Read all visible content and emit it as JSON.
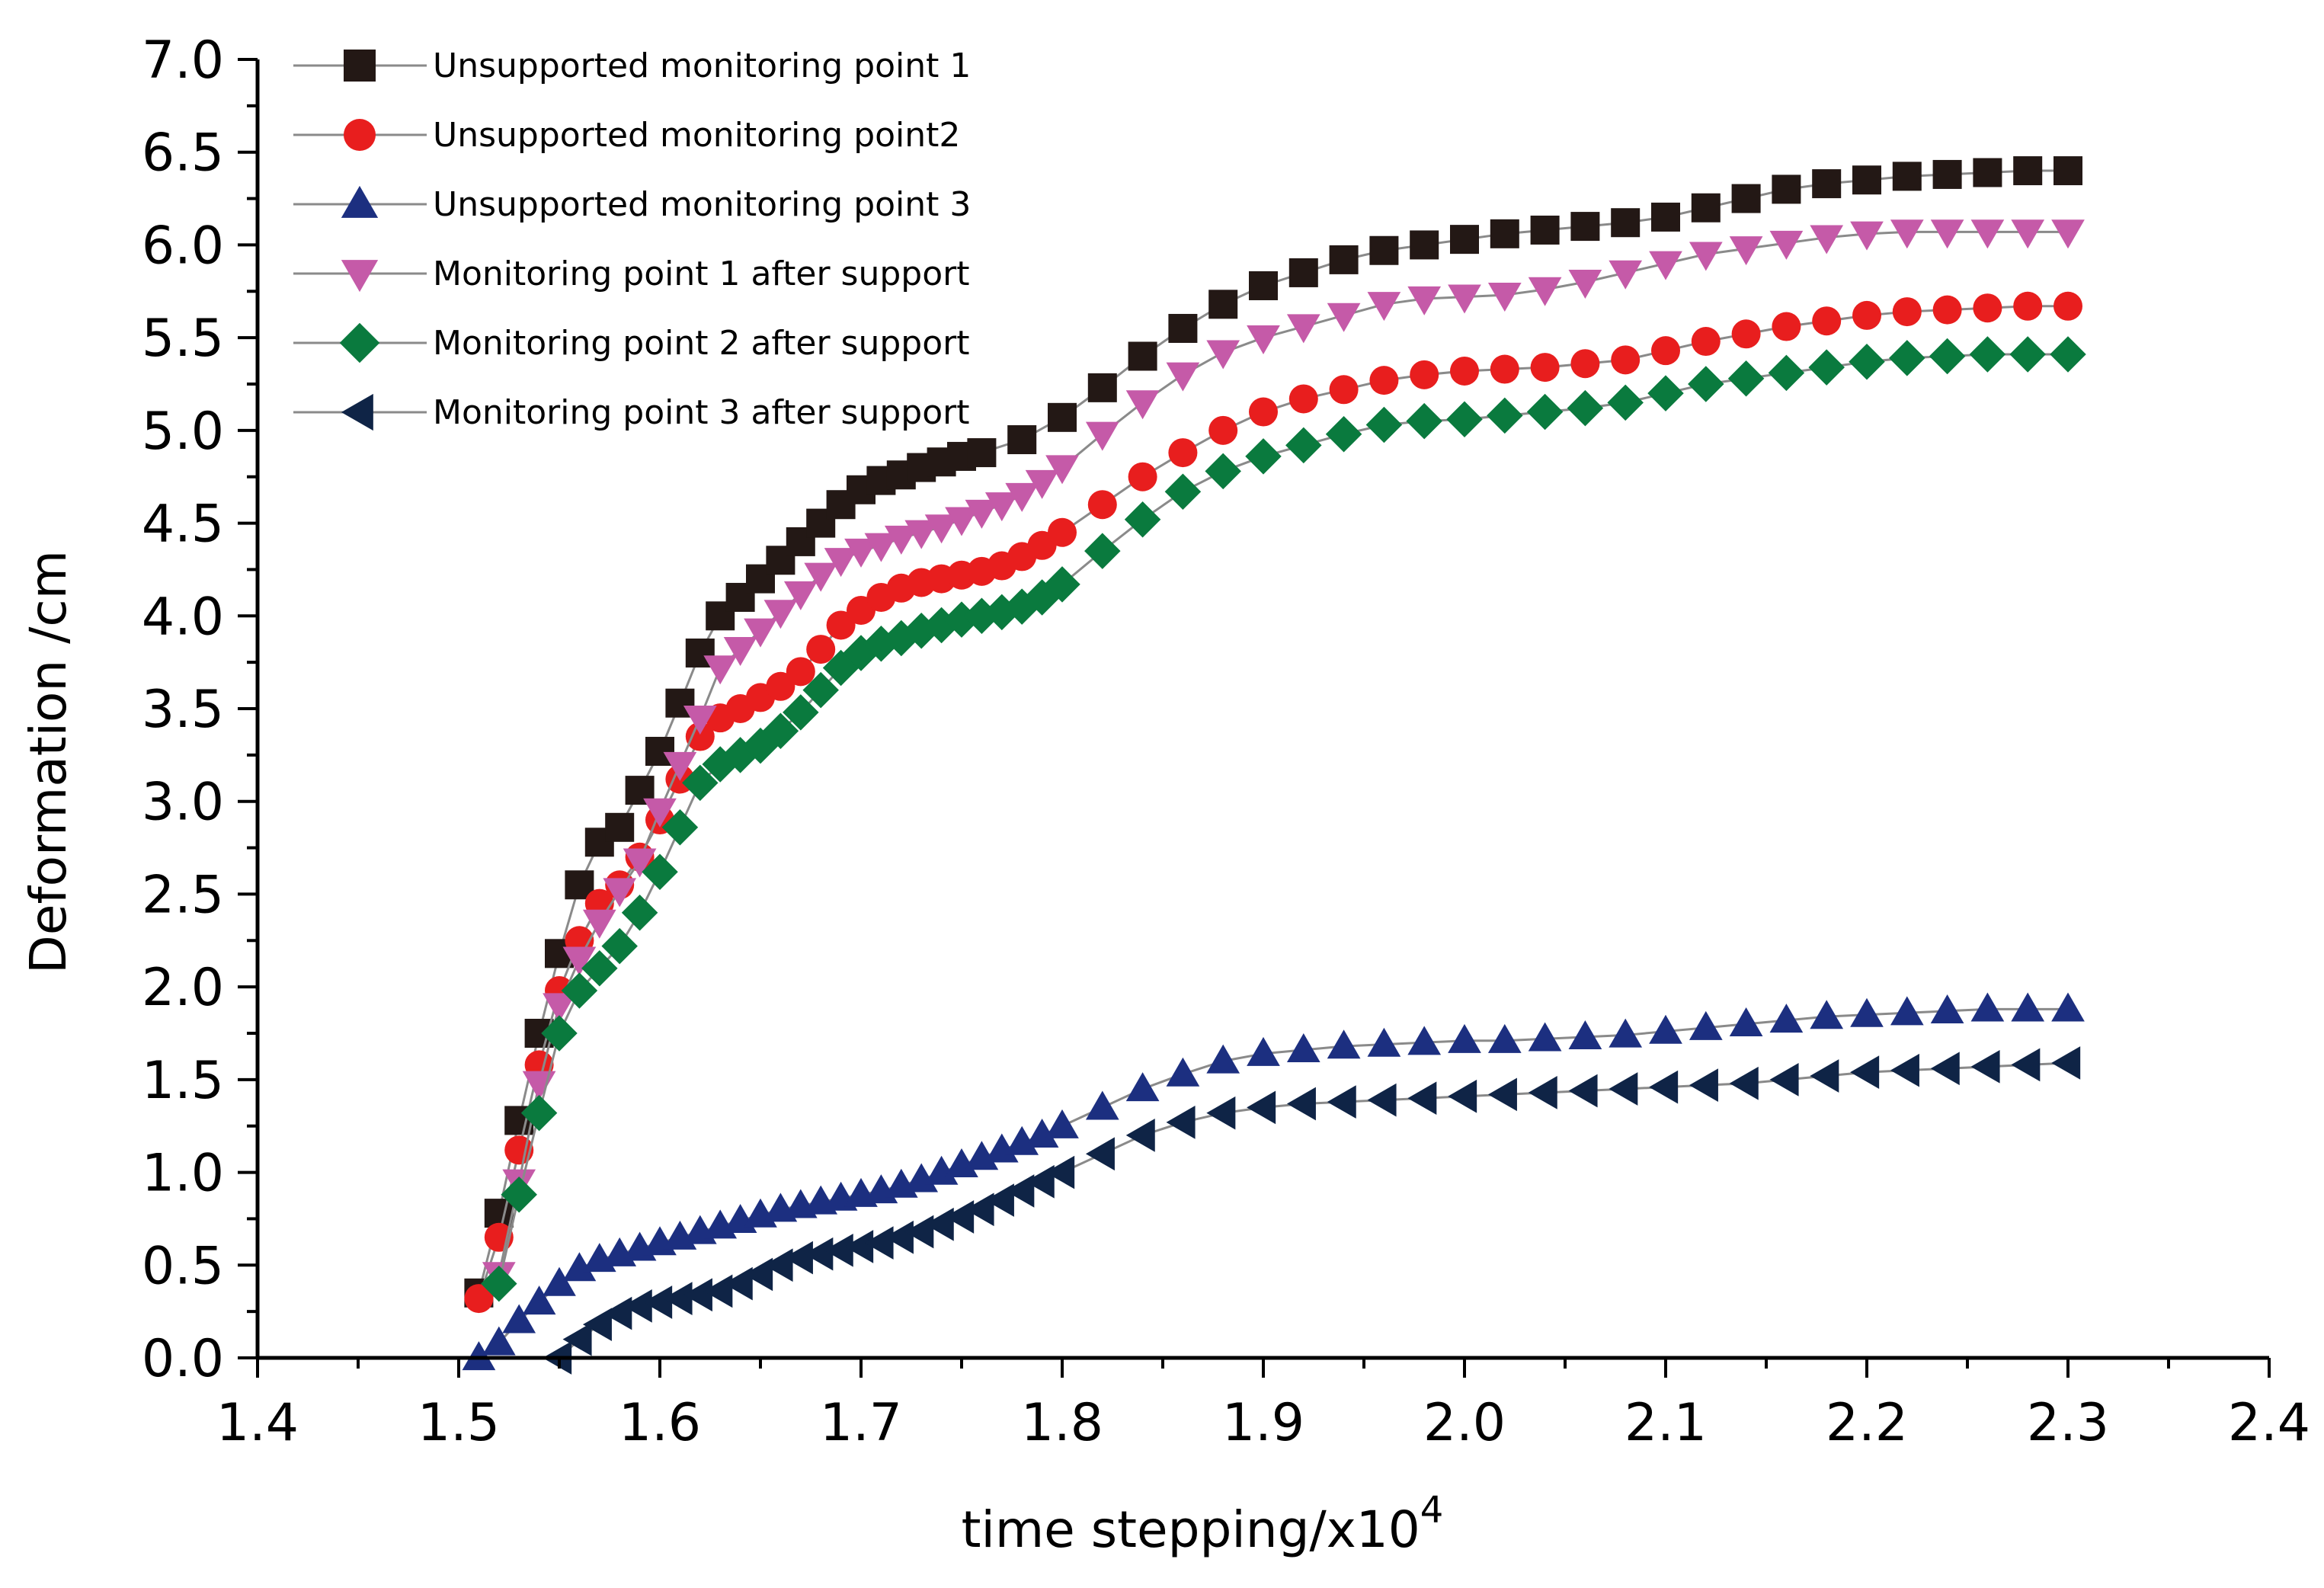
{
  "chart_data": {
    "type": "scatter",
    "title": "",
    "xlabel": "time stepping/x10",
    "xlabel_exponent": "4",
    "ylabel": "Deformation /cm",
    "xlim": [
      1.4,
      2.4
    ],
    "ylim": [
      0.0,
      7.0
    ],
    "x_ticks": [
      "1.4",
      "1.5",
      "1.6",
      "1.7",
      "1.8",
      "1.9",
      "2.0",
      "2.1",
      "2.2",
      "2.3",
      "2.4"
    ],
    "y_ticks": [
      "0.0",
      "0.5",
      "1.0",
      "1.5",
      "2.0",
      "2.5",
      "3.0",
      "3.5",
      "4.0",
      "4.5",
      "5.0",
      "5.5",
      "6.0",
      "6.5",
      "7.0"
    ],
    "grid": false,
    "legend_position": "top-left",
    "series": [
      {
        "name": "Unsupported monitoring point 1",
        "marker": "square",
        "color": "#231815",
        "x": [
          1.51,
          1.52,
          1.53,
          1.54,
          1.55,
          1.56,
          1.57,
          1.58,
          1.59,
          1.6,
          1.61,
          1.62,
          1.63,
          1.64,
          1.65,
          1.66,
          1.67,
          1.68,
          1.69,
          1.7,
          1.71,
          1.72,
          1.73,
          1.74,
          1.75,
          1.76,
          1.78,
          1.8,
          1.82,
          1.84,
          1.86,
          1.88,
          1.9,
          1.92,
          1.94,
          1.96,
          1.98,
          2.0,
          2.02,
          2.04,
          2.06,
          2.08,
          2.1,
          2.12,
          2.14,
          2.16,
          2.18,
          2.2,
          2.22,
          2.24,
          2.26,
          2.28,
          2.3
        ],
        "y": [
          0.35,
          0.78,
          1.28,
          1.75,
          2.18,
          2.55,
          2.78,
          2.86,
          3.06,
          3.27,
          3.53,
          3.8,
          4.0,
          4.1,
          4.2,
          4.3,
          4.4,
          4.5,
          4.6,
          4.68,
          4.73,
          4.76,
          4.8,
          4.83,
          4.86,
          4.88,
          4.95,
          5.07,
          5.23,
          5.4,
          5.55,
          5.68,
          5.78,
          5.85,
          5.92,
          5.97,
          6.0,
          6.03,
          6.06,
          6.08,
          6.1,
          6.12,
          6.15,
          6.2,
          6.25,
          6.3,
          6.33,
          6.35,
          6.37,
          6.38,
          6.39,
          6.4,
          6.4
        ]
      },
      {
        "name": "Unsupported monitoring point2",
        "marker": "circle",
        "color": "#e81e1e",
        "x": [
          1.51,
          1.52,
          1.53,
          1.54,
          1.55,
          1.56,
          1.57,
          1.58,
          1.59,
          1.6,
          1.61,
          1.62,
          1.63,
          1.64,
          1.65,
          1.66,
          1.67,
          1.68,
          1.69,
          1.7,
          1.71,
          1.72,
          1.73,
          1.74,
          1.75,
          1.76,
          1.77,
          1.78,
          1.79,
          1.8,
          1.82,
          1.84,
          1.86,
          1.88,
          1.9,
          1.92,
          1.94,
          1.96,
          1.98,
          2.0,
          2.02,
          2.04,
          2.06,
          2.08,
          2.1,
          2.12,
          2.14,
          2.16,
          2.18,
          2.2,
          2.22,
          2.24,
          2.26,
          2.28,
          2.3
        ],
        "y": [
          0.32,
          0.65,
          1.12,
          1.58,
          1.98,
          2.25,
          2.45,
          2.55,
          2.7,
          2.9,
          3.12,
          3.35,
          3.45,
          3.5,
          3.56,
          3.62,
          3.7,
          3.82,
          3.95,
          4.03,
          4.1,
          4.15,
          4.18,
          4.2,
          4.22,
          4.24,
          4.27,
          4.32,
          4.38,
          4.45,
          4.6,
          4.75,
          4.88,
          5.0,
          5.1,
          5.17,
          5.22,
          5.27,
          5.3,
          5.32,
          5.33,
          5.34,
          5.36,
          5.38,
          5.43,
          5.48,
          5.52,
          5.56,
          5.59,
          5.62,
          5.64,
          5.65,
          5.66,
          5.67,
          5.67
        ]
      },
      {
        "name": "Unsupported monitoring point 3",
        "marker": "triangle-up",
        "color": "#1c2f80",
        "x": [
          1.51,
          1.52,
          1.53,
          1.54,
          1.55,
          1.56,
          1.57,
          1.58,
          1.59,
          1.6,
          1.61,
          1.62,
          1.63,
          1.64,
          1.65,
          1.66,
          1.67,
          1.68,
          1.69,
          1.7,
          1.71,
          1.72,
          1.73,
          1.74,
          1.75,
          1.76,
          1.77,
          1.78,
          1.79,
          1.8,
          1.82,
          1.84,
          1.86,
          1.88,
          1.9,
          1.92,
          1.94,
          1.96,
          1.98,
          2.0,
          2.02,
          2.04,
          2.06,
          2.08,
          2.1,
          2.12,
          2.14,
          2.16,
          2.18,
          2.2,
          2.22,
          2.24,
          2.26,
          2.28,
          2.3
        ],
        "y": [
          0.0,
          0.08,
          0.2,
          0.3,
          0.4,
          0.48,
          0.53,
          0.56,
          0.59,
          0.62,
          0.65,
          0.68,
          0.71,
          0.74,
          0.77,
          0.8,
          0.82,
          0.84,
          0.86,
          0.88,
          0.9,
          0.93,
          0.96,
          1.0,
          1.04,
          1.08,
          1.12,
          1.16,
          1.2,
          1.25,
          1.35,
          1.45,
          1.53,
          1.6,
          1.64,
          1.66,
          1.68,
          1.69,
          1.7,
          1.71,
          1.71,
          1.72,
          1.73,
          1.74,
          1.76,
          1.78,
          1.8,
          1.82,
          1.84,
          1.85,
          1.86,
          1.87,
          1.88,
          1.88,
          1.88
        ]
      },
      {
        "name": "Monitoring point 1 after support",
        "marker": "triangle-down",
        "color": "#c55aa8",
        "x": [
          1.52,
          1.53,
          1.54,
          1.55,
          1.56,
          1.57,
          1.58,
          1.59,
          1.6,
          1.61,
          1.62,
          1.63,
          1.64,
          1.65,
          1.66,
          1.67,
          1.68,
          1.69,
          1.7,
          1.71,
          1.72,
          1.73,
          1.74,
          1.75,
          1.76,
          1.77,
          1.78,
          1.79,
          1.8,
          1.82,
          1.84,
          1.86,
          1.88,
          1.9,
          1.92,
          1.94,
          1.96,
          1.98,
          2.0,
          2.02,
          2.04,
          2.06,
          2.08,
          2.1,
          2.12,
          2.14,
          2.16,
          2.18,
          2.2,
          2.22,
          2.24,
          2.26,
          2.28,
          2.3
        ],
        "y": [
          0.45,
          0.95,
          1.48,
          1.9,
          2.15,
          2.35,
          2.52,
          2.68,
          2.95,
          3.2,
          3.45,
          3.72,
          3.82,
          3.92,
          4.02,
          4.12,
          4.22,
          4.3,
          4.35,
          4.38,
          4.42,
          4.45,
          4.48,
          4.52,
          4.56,
          4.6,
          4.65,
          4.72,
          4.8,
          4.98,
          5.15,
          5.3,
          5.42,
          5.5,
          5.56,
          5.62,
          5.68,
          5.71,
          5.72,
          5.73,
          5.76,
          5.8,
          5.85,
          5.9,
          5.95,
          5.98,
          6.01,
          6.04,
          6.06,
          6.07,
          6.07,
          6.07,
          6.07,
          6.07
        ]
      },
      {
        "name": "Monitoring point 2 after support",
        "marker": "diamond",
        "color": "#0a7a3e",
        "x": [
          1.52,
          1.53,
          1.54,
          1.55,
          1.56,
          1.57,
          1.58,
          1.59,
          1.6,
          1.61,
          1.62,
          1.63,
          1.64,
          1.65,
          1.66,
          1.67,
          1.68,
          1.69,
          1.7,
          1.71,
          1.72,
          1.73,
          1.74,
          1.75,
          1.76,
          1.77,
          1.78,
          1.79,
          1.8,
          1.82,
          1.84,
          1.86,
          1.88,
          1.9,
          1.92,
          1.94,
          1.96,
          1.98,
          2.0,
          2.02,
          2.04,
          2.06,
          2.08,
          2.1,
          2.12,
          2.14,
          2.16,
          2.18,
          2.2,
          2.22,
          2.24,
          2.26,
          2.28,
          2.3
        ],
        "y": [
          0.4,
          0.88,
          1.32,
          1.75,
          1.98,
          2.1,
          2.22,
          2.4,
          2.62,
          2.86,
          3.1,
          3.2,
          3.25,
          3.3,
          3.38,
          3.48,
          3.6,
          3.72,
          3.8,
          3.85,
          3.88,
          3.92,
          3.95,
          3.98,
          4.0,
          4.02,
          4.05,
          4.1,
          4.17,
          4.35,
          4.52,
          4.67,
          4.78,
          4.86,
          4.92,
          4.98,
          5.03,
          5.05,
          5.06,
          5.08,
          5.1,
          5.12,
          5.15,
          5.2,
          5.25,
          5.28,
          5.31,
          5.34,
          5.37,
          5.39,
          5.4,
          5.41,
          5.41,
          5.41
        ]
      },
      {
        "name": "Monitoring point 3 after support",
        "marker": "triangle-left",
        "color": "#0f2446",
        "x": [
          1.55,
          1.56,
          1.57,
          1.58,
          1.59,
          1.6,
          1.61,
          1.62,
          1.63,
          1.64,
          1.65,
          1.66,
          1.67,
          1.68,
          1.69,
          1.7,
          1.71,
          1.72,
          1.73,
          1.74,
          1.75,
          1.76,
          1.77,
          1.78,
          1.79,
          1.8,
          1.82,
          1.84,
          1.86,
          1.88,
          1.9,
          1.92,
          1.94,
          1.96,
          1.98,
          2.0,
          2.02,
          2.04,
          2.06,
          2.08,
          2.1,
          2.12,
          2.14,
          2.16,
          2.18,
          2.2,
          2.22,
          2.24,
          2.26,
          2.28,
          2.3
        ],
        "y": [
          0.0,
          0.1,
          0.18,
          0.24,
          0.28,
          0.3,
          0.32,
          0.34,
          0.36,
          0.4,
          0.45,
          0.5,
          0.54,
          0.56,
          0.58,
          0.6,
          0.62,
          0.65,
          0.68,
          0.72,
          0.76,
          0.8,
          0.85,
          0.9,
          0.95,
          1.0,
          1.1,
          1.2,
          1.27,
          1.32,
          1.35,
          1.37,
          1.38,
          1.39,
          1.4,
          1.41,
          1.42,
          1.43,
          1.44,
          1.45,
          1.46,
          1.47,
          1.48,
          1.5,
          1.52,
          1.54,
          1.55,
          1.56,
          1.57,
          1.58,
          1.59
        ]
      }
    ]
  }
}
